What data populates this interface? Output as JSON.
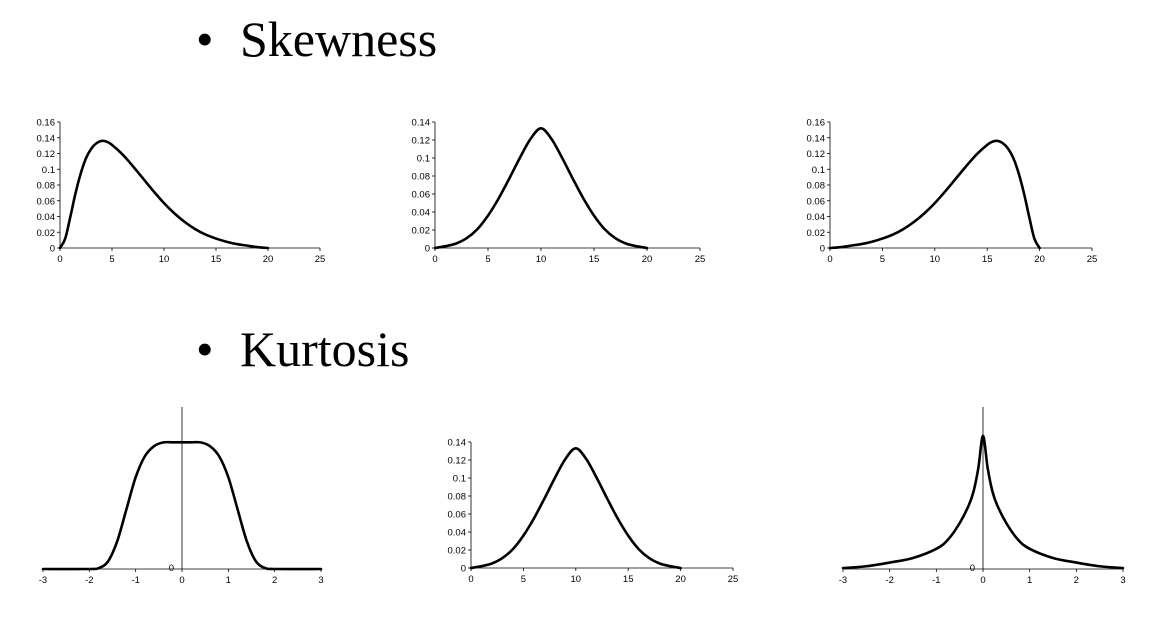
{
  "headings": {
    "skewness": "Skewness",
    "kurtosis": "Kurtosis",
    "bullet": "•"
  },
  "colors": {
    "line": "#000000",
    "background": "#ffffff"
  },
  "chart_data": [
    {
      "type": "line",
      "xlim": [
        0,
        25
      ],
      "ylim": [
        0,
        0.16
      ],
      "x_ticks": [
        0,
        5,
        10,
        15,
        20,
        25
      ],
      "y_ticks": [
        0,
        0.02,
        0.04,
        0.06,
        0.08,
        0.1,
        0.12,
        0.14,
        0.16
      ],
      "x_tick_labels": [
        "0",
        "5",
        "10",
        "15",
        "20",
        "25"
      ],
      "y_tick_labels": [
        "0",
        "0.02",
        "0.04",
        "0.06",
        "0.08",
        "0.1",
        "0.12",
        "0.14",
        "0.16"
      ],
      "axis_style": "left",
      "grid": false,
      "series": [
        {
          "x": [
            0,
            0.5,
            1,
            1.5,
            2,
            2.5,
            3,
            3.5,
            4,
            4.5,
            5,
            6,
            7,
            8,
            9,
            10,
            11,
            12,
            13,
            14,
            15,
            16,
            17,
            18,
            19,
            20
          ],
          "values": [
            0,
            0.012,
            0.04,
            0.07,
            0.095,
            0.114,
            0.126,
            0.133,
            0.136,
            0.135,
            0.131,
            0.119,
            0.104,
            0.088,
            0.072,
            0.057,
            0.044,
            0.033,
            0.024,
            0.017,
            0.012,
            0.008,
            0.005,
            0.003,
            0.001,
            0
          ]
        }
      ]
    },
    {
      "type": "line",
      "xlim": [
        0,
        25
      ],
      "ylim": [
        0,
        0.14
      ],
      "x_ticks": [
        0,
        5,
        10,
        15,
        20,
        25
      ],
      "y_ticks": [
        0,
        0.02,
        0.04,
        0.06,
        0.08,
        0.1,
        0.12,
        0.14
      ],
      "x_tick_labels": [
        "0",
        "5",
        "10",
        "15",
        "20",
        "25"
      ],
      "y_tick_labels": [
        "0",
        "0.02",
        "0.04",
        "0.06",
        "0.08",
        "0.1",
        "0.12",
        "0.14"
      ],
      "axis_style": "left",
      "grid": false,
      "series": [
        {
          "x": [
            0,
            1,
            2,
            3,
            4,
            5,
            6,
            7,
            8,
            9,
            10,
            11,
            12,
            13,
            14,
            15,
            16,
            17,
            18,
            19,
            20
          ],
          "values": [
            0,
            0.002,
            0.005,
            0.011,
            0.021,
            0.036,
            0.055,
            0.077,
            0.1,
            0.121,
            0.133,
            0.121,
            0.1,
            0.077,
            0.055,
            0.036,
            0.021,
            0.011,
            0.005,
            0.002,
            0
          ]
        }
      ]
    },
    {
      "type": "line",
      "xlim": [
        0,
        25
      ],
      "ylim": [
        0,
        0.16
      ],
      "x_ticks": [
        0,
        5,
        10,
        15,
        20,
        25
      ],
      "y_ticks": [
        0,
        0.02,
        0.04,
        0.06,
        0.08,
        0.1,
        0.12,
        0.14,
        0.16
      ],
      "x_tick_labels": [
        "0",
        "5",
        "10",
        "15",
        "20",
        "25"
      ],
      "y_tick_labels": [
        "0",
        "0.02",
        "0.04",
        "0.06",
        "0.08",
        "0.1",
        "0.12",
        "0.14",
        "0.16"
      ],
      "axis_style": "left",
      "grid": false,
      "series": [
        {
          "x": [
            0,
            1,
            2,
            3,
            4,
            5,
            6,
            7,
            8,
            9,
            10,
            11,
            12,
            13,
            14,
            15,
            15.5,
            16,
            16.5,
            17,
            17.5,
            18,
            18.5,
            19,
            19.5,
            20
          ],
          "values": [
            0,
            0.001,
            0.003,
            0.005,
            0.008,
            0.012,
            0.017,
            0.024,
            0.033,
            0.044,
            0.057,
            0.072,
            0.088,
            0.104,
            0.119,
            0.131,
            0.135,
            0.136,
            0.133,
            0.126,
            0.114,
            0.095,
            0.07,
            0.04,
            0.012,
            0
          ]
        }
      ]
    },
    {
      "type": "line",
      "xlim": [
        -3,
        3
      ],
      "ylim": [
        0,
        0.17
      ],
      "x_ticks": [
        -3,
        -2,
        -1,
        0,
        1,
        2,
        3
      ],
      "x_tick_labels": [
        "-3",
        "-2",
        "-1",
        "0",
        "1",
        "2",
        "3"
      ],
      "y_ticks": [
        0
      ],
      "y_tick_labels": [
        "0"
      ],
      "axis_style": "center",
      "grid": false,
      "series": [
        {
          "x": [
            -3,
            -2,
            -1.8,
            -1.6,
            -1.4,
            -1.2,
            -1,
            -0.8,
            -0.6,
            -0.4,
            -0.2,
            0,
            0.2,
            0.4,
            0.6,
            0.8,
            1,
            1.2,
            1.4,
            1.6,
            1.8,
            2,
            3
          ],
          "values": [
            0,
            0,
            0.001,
            0.008,
            0.03,
            0.065,
            0.1,
            0.123,
            0.134,
            0.138,
            0.138,
            0.138,
            0.138,
            0.138,
            0.134,
            0.123,
            0.1,
            0.065,
            0.03,
            0.008,
            0.001,
            0,
            0
          ]
        }
      ]
    },
    {
      "type": "line",
      "xlim": [
        0,
        25
      ],
      "ylim": [
        0,
        0.14
      ],
      "x_ticks": [
        0,
        5,
        10,
        15,
        20,
        25
      ],
      "y_ticks": [
        0,
        0.02,
        0.04,
        0.06,
        0.08,
        0.1,
        0.12,
        0.14
      ],
      "x_tick_labels": [
        "0",
        "5",
        "10",
        "15",
        "20",
        "25"
      ],
      "y_tick_labels": [
        "0",
        "0.02",
        "0.04",
        "0.06",
        "0.08",
        "0.1",
        "0.12",
        "0.14"
      ],
      "axis_style": "left",
      "grid": false,
      "series": [
        {
          "x": [
            0,
            1,
            2,
            3,
            4,
            5,
            6,
            7,
            8,
            9,
            10,
            11,
            12,
            13,
            14,
            15,
            16,
            17,
            18,
            19,
            20
          ],
          "values": [
            0,
            0.002,
            0.005,
            0.011,
            0.021,
            0.036,
            0.055,
            0.077,
            0.1,
            0.121,
            0.133,
            0.121,
            0.1,
            0.077,
            0.055,
            0.036,
            0.021,
            0.011,
            0.005,
            0.002,
            0
          ]
        }
      ]
    },
    {
      "type": "line",
      "xlim": [
        -3,
        3
      ],
      "ylim": [
        0,
        0.17
      ],
      "x_ticks": [
        -3,
        -2,
        -1,
        0,
        1,
        2,
        3
      ],
      "x_tick_labels": [
        "-3",
        "-2",
        "-1",
        "0",
        "1",
        "2",
        "3"
      ],
      "y_ticks": [
        0
      ],
      "y_tick_labels": [
        "0"
      ],
      "axis_style": "center",
      "grid": false,
      "series": [
        {
          "x": [
            -3,
            -2.5,
            -2,
            -1.5,
            -1,
            -0.75,
            -0.5,
            -0.3,
            -0.2,
            -0.1,
            0,
            0.1,
            0.2,
            0.3,
            0.5,
            0.75,
            1,
            1.5,
            2,
            2.5,
            3
          ],
          "values": [
            0.001,
            0.003,
            0.007,
            0.012,
            0.022,
            0.032,
            0.05,
            0.07,
            0.085,
            0.11,
            0.145,
            0.11,
            0.085,
            0.07,
            0.05,
            0.032,
            0.022,
            0.012,
            0.007,
            0.003,
            0.001
          ]
        }
      ]
    }
  ]
}
